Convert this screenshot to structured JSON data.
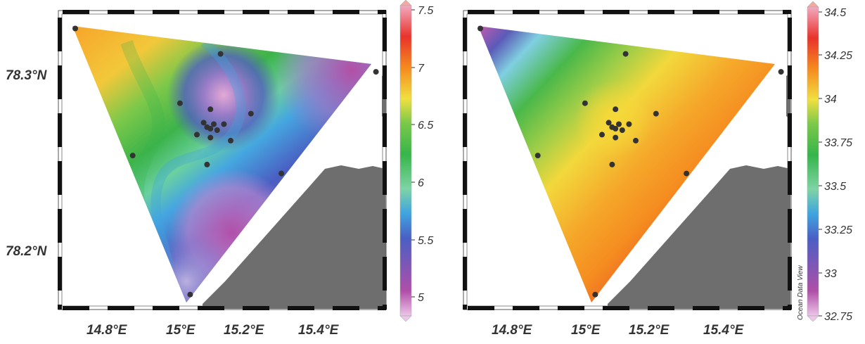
{
  "panels": [
    {
      "id": "left",
      "colorbar": {
        "ticks": [
          "7.5",
          "7",
          "6.5",
          "6",
          "5.5",
          "5"
        ],
        "tick_values": [
          7.5,
          7,
          6.5,
          6,
          5.5,
          5
        ],
        "range": [
          4.8,
          7.5
        ]
      }
    },
    {
      "id": "right",
      "colorbar": {
        "ticks": [
          "34.5",
          "34.25",
          "34",
          "33.75",
          "33.5",
          "33.25",
          "33",
          "32.75"
        ],
        "tick_values": [
          34.5,
          34.25,
          34,
          33.75,
          33.5,
          33.25,
          33,
          32.75
        ],
        "range": [
          32.75,
          34.5
        ]
      }
    }
  ],
  "axes": {
    "x_ticks": [
      "14.8°E",
      "15°E",
      "15.2°E",
      "15.4°E"
    ],
    "x_tick_values": [
      14.8,
      15.0,
      15.2,
      15.4
    ],
    "y_ticks": [
      "78.3°N",
      "78.2°N"
    ],
    "y_tick_values": [
      78.3,
      78.2
    ],
    "lon_range": [
      14.63,
      15.6
    ],
    "lat_range": [
      78.145,
      78.345
    ]
  },
  "credit": "Ocean Data View",
  "stations": [
    {
      "lon": 14.68,
      "lat": 78.333
    },
    {
      "lon": 15.11,
      "lat": 78.316
    },
    {
      "lon": 15.57,
      "lat": 78.304
    },
    {
      "lon": 14.99,
      "lat": 78.283
    },
    {
      "lon": 15.08,
      "lat": 78.279
    },
    {
      "lon": 15.2,
      "lat": 78.276
    },
    {
      "lon": 15.06,
      "lat": 78.27
    },
    {
      "lon": 15.09,
      "lat": 78.269
    },
    {
      "lon": 15.12,
      "lat": 78.269
    },
    {
      "lon": 15.07,
      "lat": 78.267
    },
    {
      "lon": 15.08,
      "lat": 78.266
    },
    {
      "lon": 15.1,
      "lat": 78.265
    },
    {
      "lon": 15.04,
      "lat": 78.262
    },
    {
      "lon": 15.08,
      "lat": 78.26
    },
    {
      "lon": 15.14,
      "lat": 78.258
    },
    {
      "lon": 14.85,
      "lat": 78.248
    },
    {
      "lon": 15.07,
      "lat": 78.242
    },
    {
      "lon": 15.29,
      "lat": 78.236
    },
    {
      "lon": 15.02,
      "lat": 78.155
    }
  ],
  "colors": {
    "land": "#6e6e6e",
    "station": "#333333",
    "frame_dash": "#111111",
    "colorbar_scale": [
      "#e8b8e2",
      "#b04fa8",
      "#5b5bb0",
      "#4a5fc4",
      "#3fa4e0",
      "#7fd4a5",
      "#36b54a",
      "#5fc14a",
      "#f0e040",
      "#f7b52a",
      "#f58a1f",
      "#e8332a",
      "#f07a9a"
    ]
  }
}
